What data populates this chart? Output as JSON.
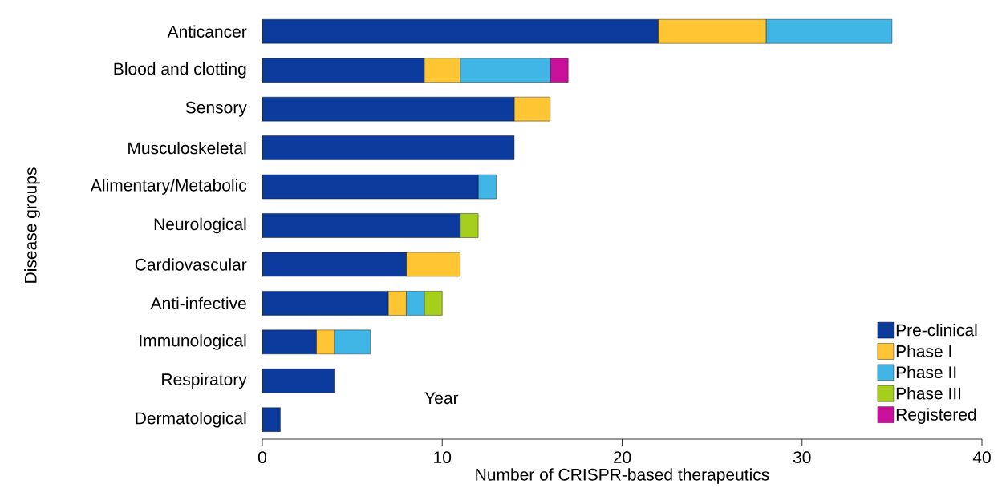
{
  "chart_data": {
    "type": "bar",
    "orientation": "horizontal",
    "stacked": true,
    "legend": "bottom right",
    "xlabel": "Number of CRISPR-based therapeutics",
    "ylabel": "Disease groups",
    "annotations": [
      "Year"
    ],
    "categories": [
      "Anticancer",
      "Blood and clotting",
      "Sensory",
      "Musculoskeletal",
      "Alimentary/Metabolic",
      "Neurological",
      "Cardiovascular",
      "Anti-infective",
      "Immunological",
      "Respiratory",
      "Dermatological"
    ],
    "xlim": [
      0,
      40
    ],
    "xticks": [
      0,
      10,
      20,
      30,
      40
    ],
    "series": [
      {
        "name": "Pre-clinical",
        "color": "#0c3b9e",
        "values": [
          22,
          9,
          14,
          14,
          12,
          11,
          8,
          7,
          3,
          4,
          1
        ]
      },
      {
        "name": "Phase I",
        "color": "#ffc532",
        "values": [
          6,
          2,
          2,
          null,
          null,
          null,
          3,
          1,
          1,
          null,
          null
        ]
      },
      {
        "name": "Phase II",
        "color": "#3fb6e6",
        "values": [
          7,
          5,
          null,
          null,
          1,
          null,
          null,
          1,
          2,
          null,
          null
        ]
      },
      {
        "name": "Phase III",
        "color": "#a5cf1c",
        "values": [
          null,
          null,
          null,
          null,
          null,
          1,
          null,
          1,
          null,
          null,
          null
        ]
      },
      {
        "name": "Registered",
        "color": "#c8109a",
        "values": [
          null,
          1,
          null,
          null,
          null,
          null,
          null,
          null,
          null,
          null,
          null
        ]
      }
    ]
  }
}
